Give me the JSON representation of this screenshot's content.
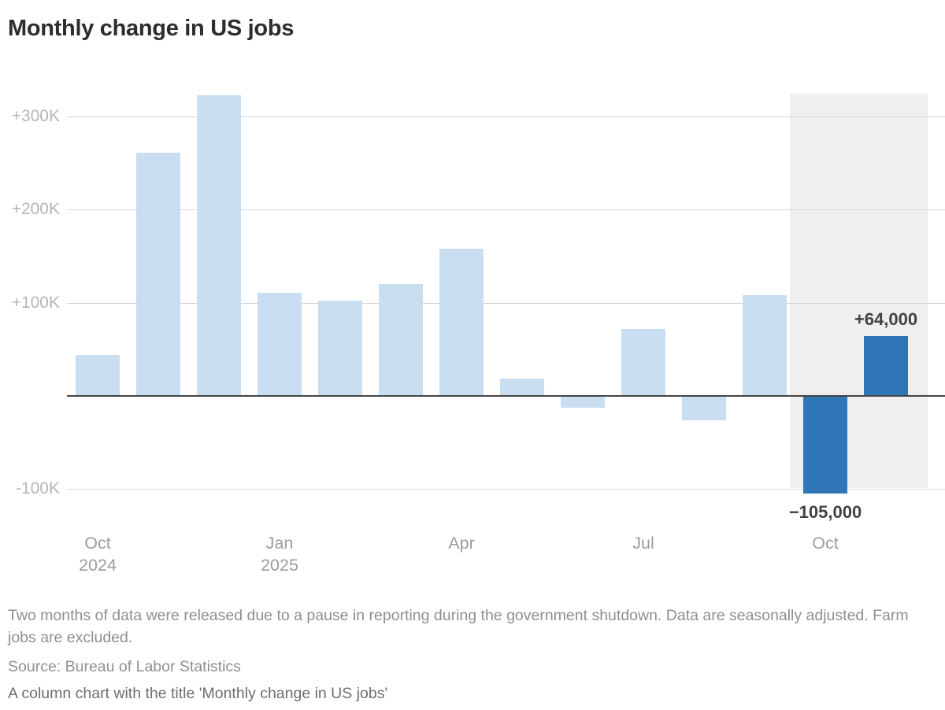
{
  "title": "Monthly change in US jobs",
  "chart_data": {
    "type": "bar",
    "title": "Monthly change in US jobs",
    "unit": "change in jobs, thousands",
    "categories": [
      "Oct 2024",
      "Nov 2024",
      "Dec 2024",
      "Jan 2025",
      "Feb 2025",
      "Mar 2025",
      "Apr 2025",
      "May 2025",
      "Jun 2025",
      "Jul 2025",
      "Aug 2025",
      "Sep 2025",
      "Oct 2025",
      "Nov 2025"
    ],
    "values_thousands": [
      44,
      261,
      323,
      111,
      102,
      120,
      158,
      19,
      -13,
      72,
      -26,
      108,
      -105,
      64
    ],
    "highlighted_indices": [
      12,
      13
    ],
    "annotations": [
      {
        "bar_index": 12,
        "text": "−105,000",
        "position": "below"
      },
      {
        "bar_index": 13,
        "text": "+64,000",
        "position": "above"
      }
    ],
    "y_axis": {
      "ticks": [
        {
          "value": 300,
          "label": "+300K"
        },
        {
          "value": 200,
          "label": "+200K"
        },
        {
          "value": 100,
          "label": "+100K"
        },
        {
          "value": -100,
          "label": "-100K"
        }
      ],
      "range_thousands": [
        -130,
        325
      ],
      "grid": true,
      "zero_line": true
    },
    "x_axis": {
      "tick_positions": [
        0,
        3,
        6,
        9,
        12
      ],
      "tick_labels": [
        [
          "Oct",
          "2024"
        ],
        [
          "Jan",
          "2025"
        ],
        [
          "Apr"
        ],
        [
          "Jul"
        ],
        [
          "Oct"
        ]
      ]
    },
    "legend": "none",
    "colors": {
      "bar_default": "#c9def1",
      "bar_highlight": "#2e76b6",
      "highlight_band": "#efefef",
      "gridline": "#d7d7d7",
      "zero_line": "#454545",
      "annotation_text": "#424242"
    }
  },
  "notes": {
    "footnote": "Two months of data were released due to a pause in reporting during the government shutdown. Data are seasonally adjusted. Farm jobs are excluded.",
    "source": "Source: Bureau of Labor Statistics",
    "alt_text": "A column chart with the title 'Monthly change in US jobs'"
  }
}
